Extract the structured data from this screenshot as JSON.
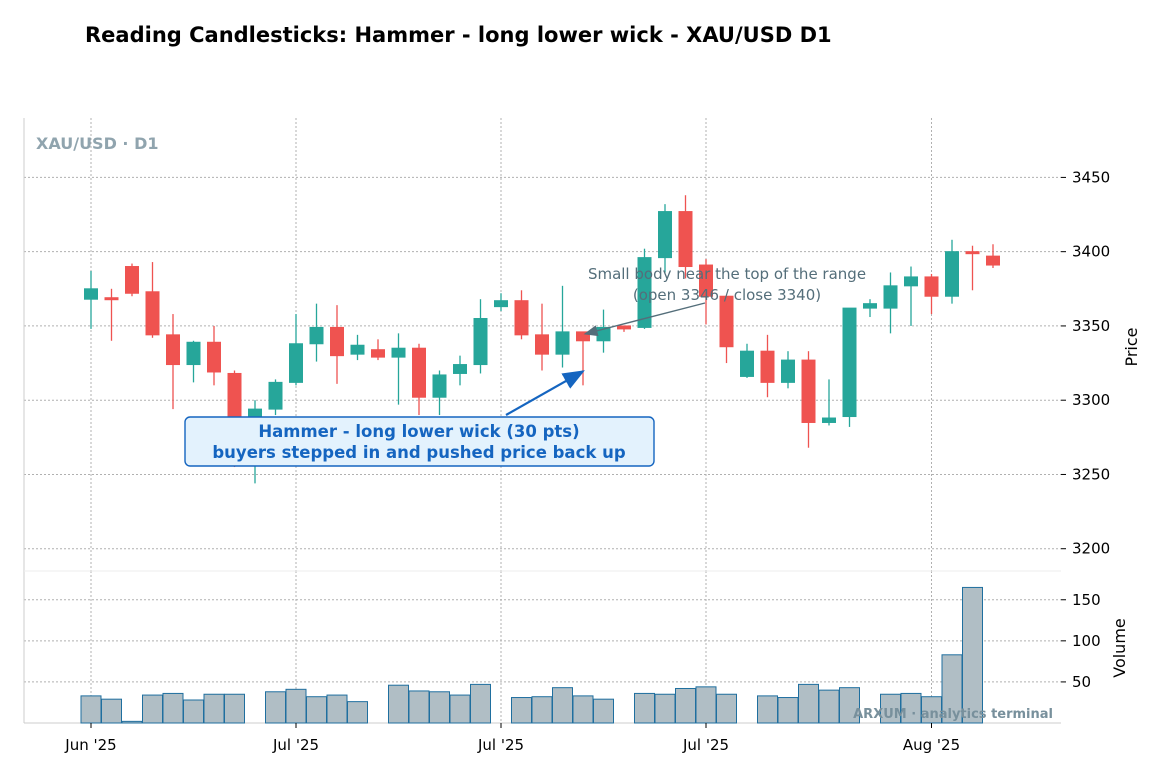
{
  "chart_data": {
    "type": "candlestick",
    "title": "Reading Candlesticks: Hammer - long lower wick - XAU/USD D1",
    "symbol_label": "XAU/USD · D1",
    "ylabel": "Price",
    "volume_label": "Volume",
    "ylim": [
      3185,
      3490
    ],
    "volume_ylim": [
      0,
      185
    ],
    "y_ticks": [
      3200,
      3250,
      3300,
      3350,
      3400,
      3450
    ],
    "volume_ticks": [
      50,
      100,
      150
    ],
    "x_tick_labels": [
      "Jun '25",
      "Jul '25",
      "Jul '25",
      "Jul '25",
      "Aug '25"
    ],
    "x_tick_bars": [
      0,
      10,
      20,
      30,
      41
    ],
    "grid": true,
    "colors": {
      "up": "#26a69a",
      "down": "#ef5350",
      "volume_fill": "#b0bec5",
      "volume_edge": "#1f6f9f",
      "grid": "#b0b0b0",
      "annotation": "#1565c0",
      "annotation_fill": "#e3f2fd",
      "note": "#546e7a",
      "symbol_label": "#90a4ae",
      "watermark": "#78909c"
    },
    "candles": [
      {
        "o": 3368,
        "h": 3387,
        "l": 3348,
        "c": 3375,
        "v": 33
      },
      {
        "o": 3369,
        "h": 3375,
        "l": 3340,
        "c": 3368,
        "v": 29
      },
      {
        "o": 3390,
        "h": 3392,
        "l": 3370,
        "c": 3372,
        "v": 2
      },
      {
        "o": 3373,
        "h": 3393,
        "l": 3342,
        "c": 3344,
        "v": 34
      },
      {
        "o": 3344,
        "h": 3358,
        "l": 3294,
        "c": 3324,
        "v": 36
      },
      {
        "o": 3324,
        "h": 3340,
        "l": 3312,
        "c": 3339,
        "v": 28
      },
      {
        "o": 3339,
        "h": 3350,
        "l": 3310,
        "c": 3319,
        "v": 35
      },
      {
        "o": 3318,
        "h": 3320,
        "l": 3255,
        "c": 3273,
        "v": 35
      },
      {
        "o": 3280,
        "h": 3300,
        "l": 3244,
        "c": 3294,
        "v": 0
      },
      {
        "o": 3294,
        "h": 3314,
        "l": 3290,
        "c": 3312,
        "v": 38
      },
      {
        "o": 3312,
        "h": 3358,
        "l": 3310,
        "c": 3338,
        "v": 41
      },
      {
        "o": 3338,
        "h": 3365,
        "l": 3326,
        "c": 3349,
        "v": 32
      },
      {
        "o": 3349,
        "h": 3364,
        "l": 3311,
        "c": 3330,
        "v": 34
      },
      {
        "o": 3331,
        "h": 3344,
        "l": 3327,
        "c": 3337,
        "v": 26
      },
      {
        "o": 3334,
        "h": 3341,
        "l": 3327,
        "c": 3329,
        "v": 0
      },
      {
        "o": 3329,
        "h": 3345,
        "l": 3297,
        "c": 3335,
        "v": 46
      },
      {
        "o": 3335,
        "h": 3338,
        "l": 3290,
        "c": 3302,
        "v": 39
      },
      {
        "o": 3302,
        "h": 3320,
        "l": 3290,
        "c": 3317,
        "v": 38
      },
      {
        "o": 3318,
        "h": 3330,
        "l": 3310,
        "c": 3324,
        "v": 34
      },
      {
        "o": 3324,
        "h": 3368,
        "l": 3318,
        "c": 3355,
        "v": 47
      },
      {
        "o": 3363,
        "h": 3372,
        "l": 3360,
        "c": 3367,
        "v": 0
      },
      {
        "o": 3367,
        "h": 3374,
        "l": 3341,
        "c": 3344,
        "v": 31
      },
      {
        "o": 3344,
        "h": 3365,
        "l": 3320,
        "c": 3331,
        "v": 32
      },
      {
        "o": 3331,
        "h": 3377,
        "l": 3322,
        "c": 3346,
        "v": 43
      },
      {
        "o": 3346,
        "h": 3346,
        "l": 3310,
        "c": 3340,
        "v": 33
      },
      {
        "o": 3340,
        "h": 3361,
        "l": 3332,
        "c": 3349,
        "v": 29
      },
      {
        "o": 3350,
        "h": 3350,
        "l": 3346,
        "c": 3348,
        "v": 0
      },
      {
        "o": 3349,
        "h": 3402,
        "l": 3348,
        "c": 3396,
        "v": 36
      },
      {
        "o": 3396,
        "h": 3432,
        "l": 3386,
        "c": 3427,
        "v": 35
      },
      {
        "o": 3427,
        "h": 3438,
        "l": 3382,
        "c": 3390,
        "v": 42
      },
      {
        "o": 3391,
        "h": 3395,
        "l": 3351,
        "c": 3370,
        "v": 44
      },
      {
        "o": 3370,
        "h": 3370,
        "l": 3325,
        "c": 3336,
        "v": 35
      },
      {
        "o": 3316,
        "h": 3338,
        "l": 3315,
        "c": 3333,
        "v": 0
      },
      {
        "o": 3333,
        "h": 3344,
        "l": 3302,
        "c": 3312,
        "v": 33
      },
      {
        "o": 3312,
        "h": 3333,
        "l": 3308,
        "c": 3327,
        "v": 31
      },
      {
        "o": 3327,
        "h": 3333,
        "l": 3268,
        "c": 3285,
        "v": 47
      },
      {
        "o": 3285,
        "h": 3314,
        "l": 3283,
        "c": 3288,
        "v": 40
      },
      {
        "o": 3289,
        "h": 3362,
        "l": 3282,
        "c": 3362,
        "v": 43
      },
      {
        "o": 3362,
        "h": 3368,
        "l": 3356,
        "c": 3365,
        "v": 0
      },
      {
        "o": 3362,
        "h": 3386,
        "l": 3345,
        "c": 3377,
        "v": 35
      },
      {
        "o": 3377,
        "h": 3390,
        "l": 3350,
        "c": 3383,
        "v": 36
      },
      {
        "o": 3383,
        "h": 3385,
        "l": 3358,
        "c": 3370,
        "v": 32
      },
      {
        "o": 3370,
        "h": 3408,
        "l": 3365,
        "c": 3400,
        "v": 83
      },
      {
        "o": 3400,
        "h": 3404,
        "l": 3374,
        "c": 3399,
        "v": 165
      },
      {
        "o": 3397,
        "h": 3405,
        "l": 3389,
        "c": 3391,
        "v": 0
      }
    ],
    "annotations": [
      {
        "text_lines": [
          "Hammer - long lower wick (30 pts)",
          "buyers stepped in and pushed price back up"
        ],
        "target_bar": 24,
        "target_price": 3310
      },
      {
        "text_lines": [
          "Small body near the top of the range",
          "(open 3346 / close 3340)"
        ],
        "target_bar": 24,
        "target_price": 3346
      }
    ],
    "watermark": "ARXUM · analytics terminal"
  }
}
